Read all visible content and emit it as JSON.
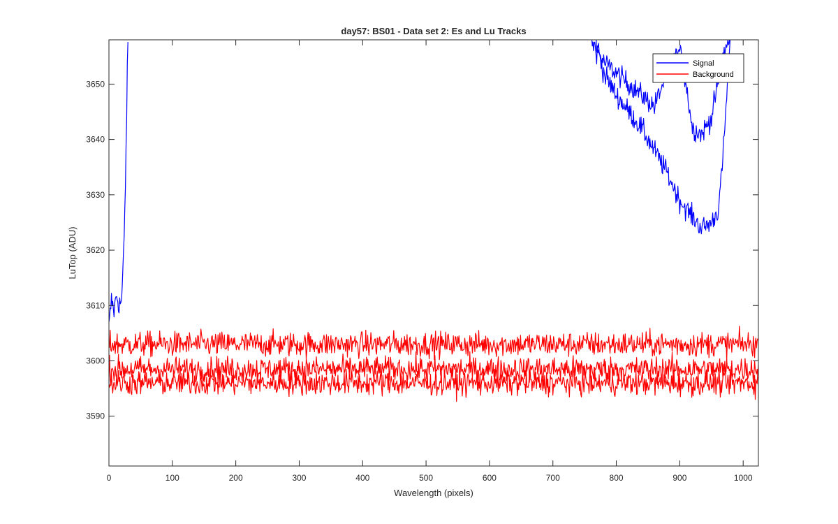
{
  "chart_data": {
    "type": "line",
    "title": "day57: BS01 - Data set 2: Es and Lu Tracks",
    "xlabel": "Wavelength (pixels)",
    "ylabel": "LuTop (ADU)",
    "xlim": [
      0,
      1024
    ],
    "ylim": [
      3581,
      3658
    ],
    "x_ticks": [
      0,
      100,
      200,
      300,
      400,
      500,
      600,
      700,
      800,
      900,
      1000
    ],
    "y_ticks": [
      3590,
      3600,
      3610,
      3620,
      3630,
      3640,
      3650
    ],
    "grid": false,
    "legend_position": "top-right",
    "legend": [
      "Signal",
      "Background"
    ],
    "series": [
      {
        "name": "Signal",
        "color": "#0000ff",
        "note": "trace 1 (left edge rising off-scale)",
        "x": [
          0,
          4,
          8,
          12,
          16,
          20,
          22,
          24,
          26,
          28,
          30
        ],
        "y": [
          3606,
          3611,
          3609,
          3612,
          3610,
          3611,
          3616,
          3622,
          3632,
          3645,
          3658
        ]
      },
      {
        "name": "Signal",
        "color": "#0000ff",
        "note": "trace 2 (upper right dip)",
        "x": [
          760,
          780,
          800,
          820,
          840,
          860,
          880,
          900,
          910,
          920,
          935,
          950,
          960,
          970,
          980
        ],
        "y": [
          3658,
          3654,
          3652,
          3650,
          3648,
          3646,
          3652,
          3656,
          3650,
          3642,
          3641,
          3644,
          3650,
          3656,
          3658
        ]
      },
      {
        "name": "Signal",
        "color": "#0000ff",
        "note": "trace 3 (lower right dip)",
        "x": [
          768,
          780,
          800,
          820,
          840,
          860,
          880,
          900,
          920,
          935,
          950,
          960,
          965,
          970,
          975,
          980
        ],
        "y": [
          3658,
          3652,
          3648,
          3645,
          3642,
          3638,
          3634,
          3629,
          3626,
          3624,
          3625,
          3627,
          3632,
          3640,
          3650,
          3658
        ]
      },
      {
        "name": "Background",
        "color": "#ff0000",
        "note": "upper band, mean level",
        "x": [
          0,
          1024
        ],
        "y": [
          3603,
          3603
        ]
      },
      {
        "name": "Background",
        "color": "#ff0000",
        "note": "middle band, mean level",
        "x": [
          0,
          1024
        ],
        "y": [
          3598.5,
          3598.5
        ]
      },
      {
        "name": "Background",
        "color": "#ff0000",
        "note": "lower band, mean level",
        "x": [
          0,
          1024
        ],
        "y": [
          3596,
          3596
        ]
      }
    ]
  }
}
